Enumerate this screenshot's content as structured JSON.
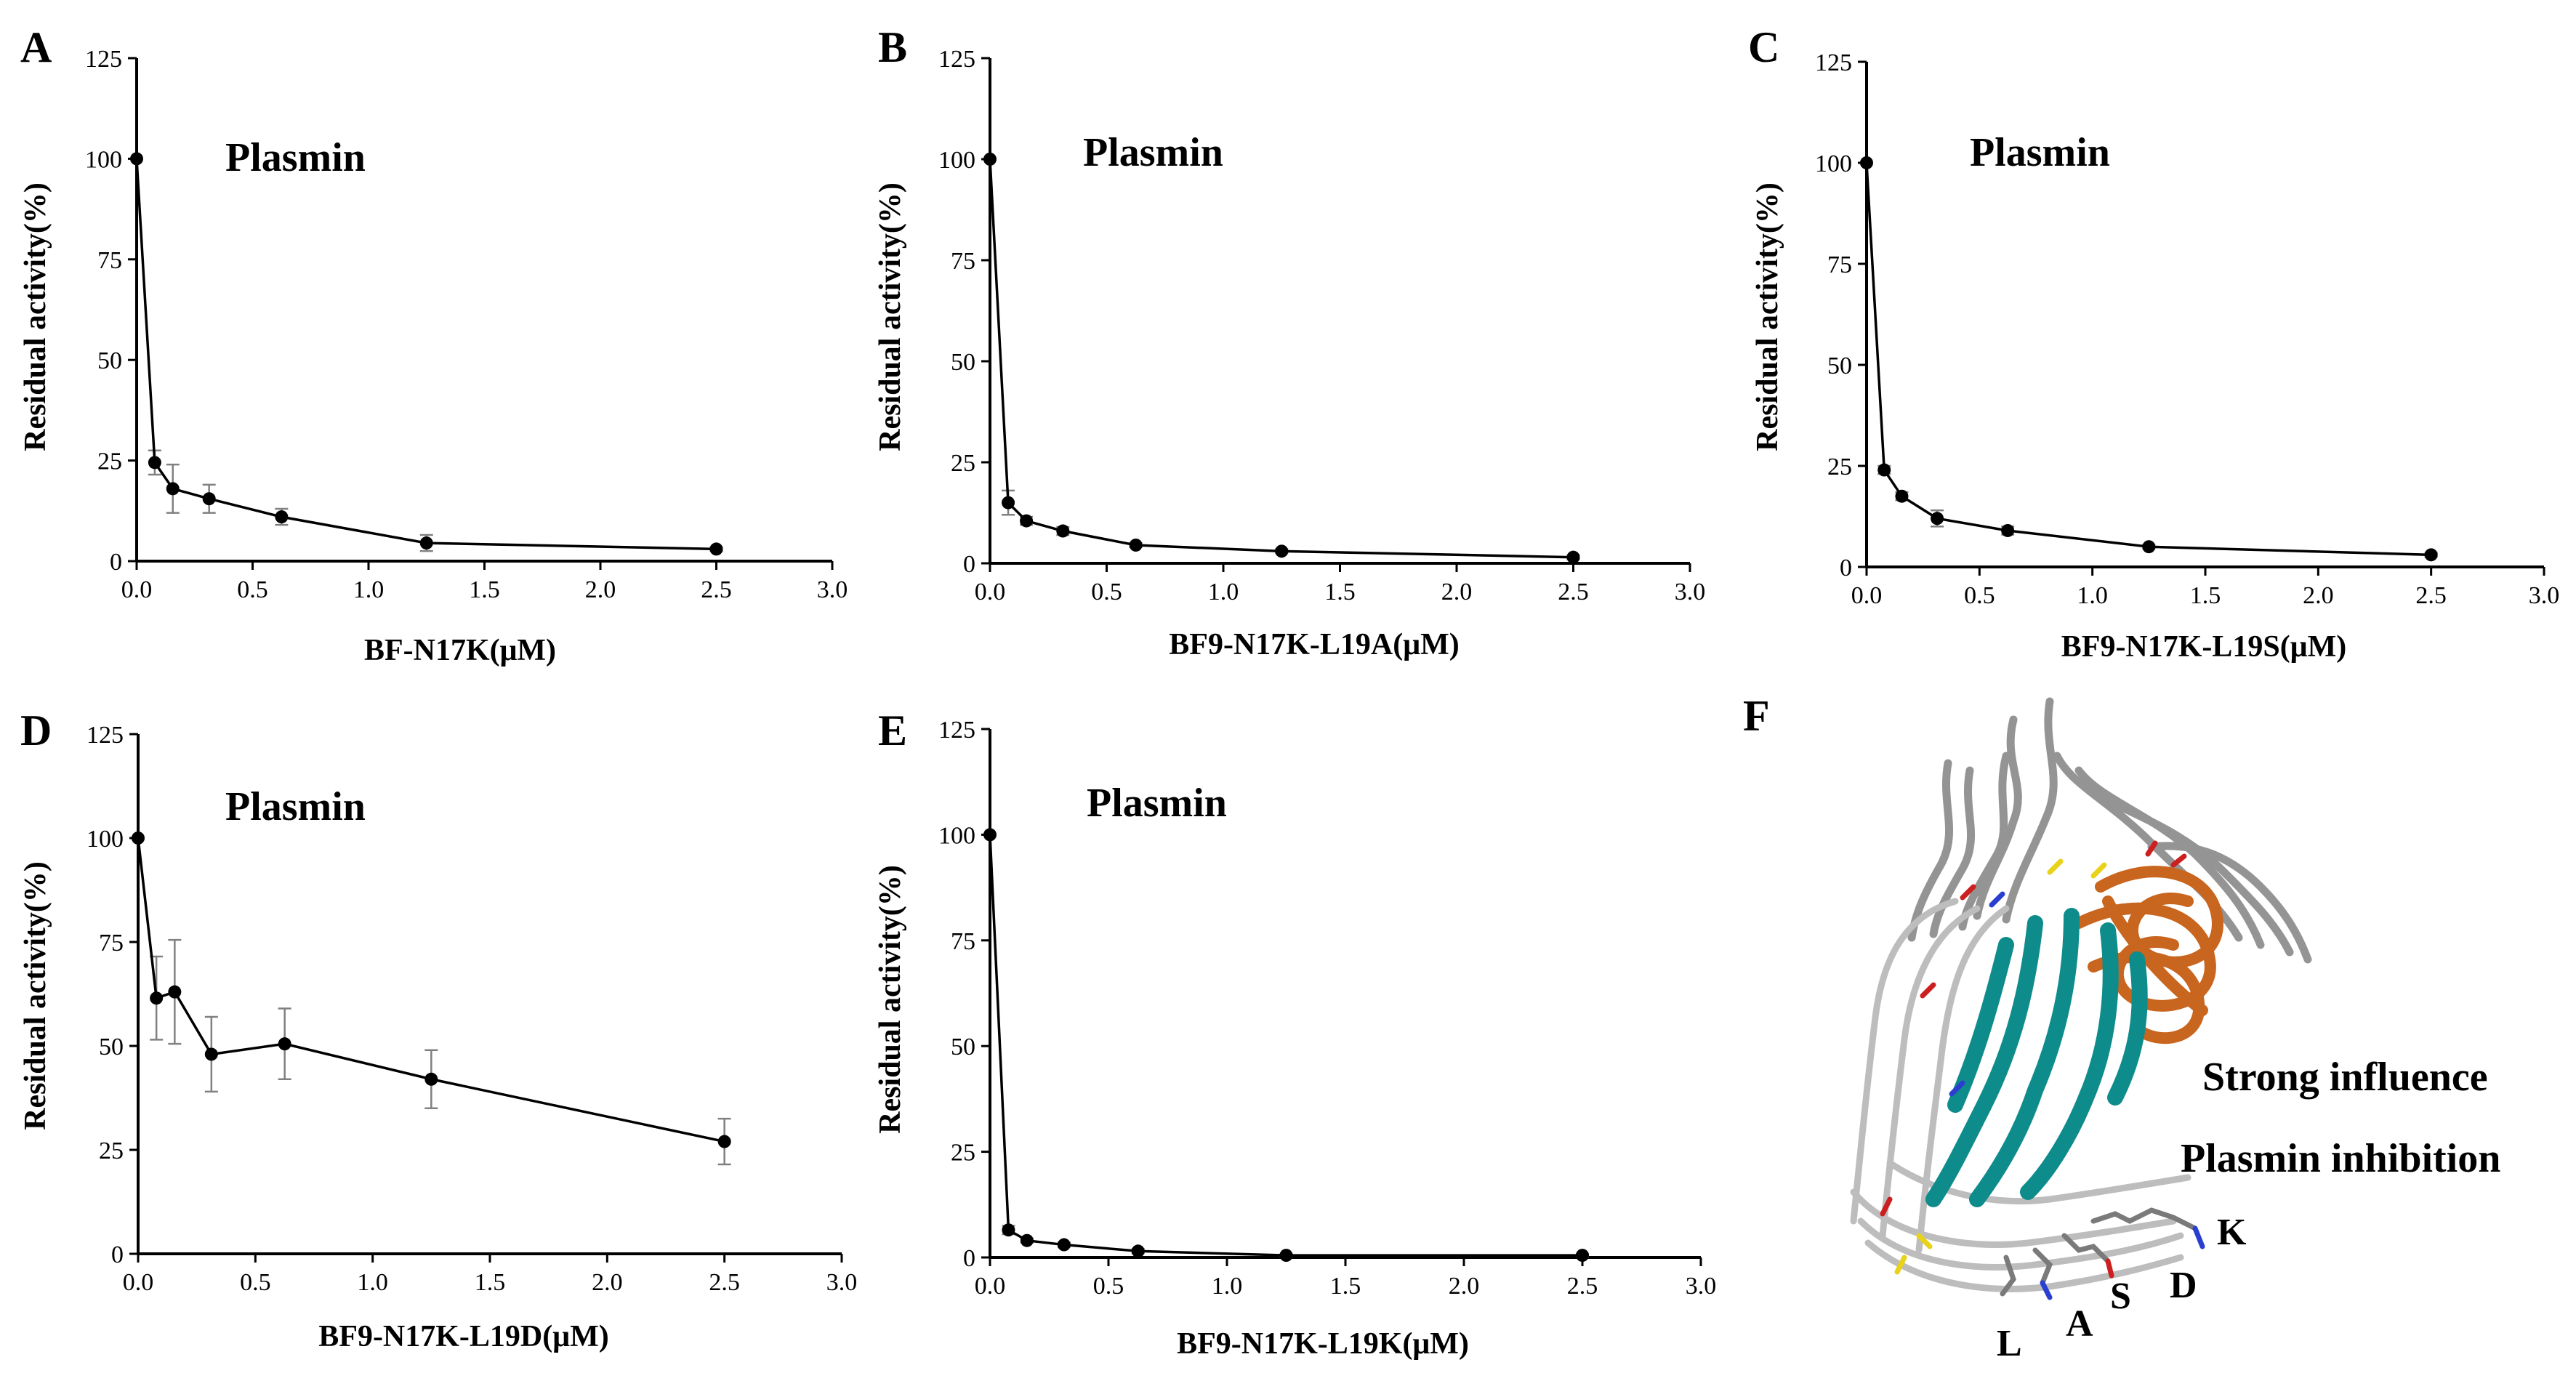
{
  "colors": {
    "line": "#000000",
    "errorbar": "#808080",
    "ribbon_gray": "#8c8c8c",
    "ribbon_light": "#c8c8c8",
    "ribbon_orange": "#c8651e",
    "ribbon_teal": "#0e8b8b",
    "sidechain_red": "#cc1f1f",
    "sidechain_blue": "#2a3fcf",
    "sidechain_yellow": "#e8d21a"
  },
  "chart_data": [
    {
      "panel": "A",
      "type": "line",
      "title": "Plasmin",
      "xlabel": "BF-N17K(μM)",
      "ylabel": "Residual activity(%)",
      "xlim": [
        0,
        3.0
      ],
      "ylim": [
        0,
        125
      ],
      "xticks": [
        "0.0",
        "0.5",
        "1.0",
        "1.5",
        "2.0",
        "2.5",
        "3.0"
      ],
      "yticks": [
        "0",
        "25",
        "50",
        "75",
        "100",
        "125"
      ],
      "x": [
        0,
        0.078,
        0.156,
        0.3125,
        0.625,
        1.25,
        2.5
      ],
      "y": [
        100,
        24.5,
        18,
        15.5,
        11,
        4.5,
        3
      ],
      "err": [
        0,
        3,
        6,
        3.5,
        2,
        2,
        0.5
      ]
    },
    {
      "panel": "B",
      "type": "line",
      "title": "Plasmin",
      "xlabel": "BF9-N17K-L19A(μM)",
      "ylabel": "Residual activity(%)",
      "xlim": [
        0,
        3.0
      ],
      "ylim": [
        0,
        125
      ],
      "xticks": [
        "0.0",
        "0.5",
        "1.0",
        "1.5",
        "2.0",
        "2.5",
        "3.0"
      ],
      "yticks": [
        "0",
        "25",
        "50",
        "75",
        "100",
        "125"
      ],
      "x": [
        0,
        0.078,
        0.156,
        0.3125,
        0.625,
        1.25,
        2.5
      ],
      "y": [
        100,
        15,
        10.5,
        8,
        4.5,
        3,
        1.5
      ],
      "err": [
        0,
        3,
        1,
        1,
        0.5,
        0.5,
        0.5
      ]
    },
    {
      "panel": "C",
      "type": "line",
      "title": "Plasmin",
      "xlabel": "BF9-N17K-L19S(μM)",
      "ylabel": "Residual activity(%)",
      "xlim": [
        0,
        3.0
      ],
      "ylim": [
        0,
        125
      ],
      "xticks": [
        "0.0",
        "0.5",
        "1.0",
        "1.5",
        "2.0",
        "2.5",
        "3.0"
      ],
      "yticks": [
        "0",
        "25",
        "50",
        "75",
        "100",
        "125"
      ],
      "x": [
        0,
        0.078,
        0.156,
        0.3125,
        0.625,
        1.25,
        2.5
      ],
      "y": [
        100,
        24,
        17.5,
        12,
        9,
        5,
        3
      ],
      "err": [
        0,
        1,
        1,
        2,
        1,
        0.5,
        0.5
      ]
    },
    {
      "panel": "D",
      "type": "line",
      "title": "Plasmin",
      "xlabel": "BF9-N17K-L19D(μM)",
      "ylabel": "Residual activity(%)",
      "xlim": [
        0,
        3.0
      ],
      "ylim": [
        0,
        125
      ],
      "xticks": [
        "0.0",
        "0.5",
        "1.0",
        "1.5",
        "2.0",
        "2.5",
        "3.0"
      ],
      "yticks": [
        "0",
        "25",
        "50",
        "75",
        "100",
        "125"
      ],
      "x": [
        0,
        0.078,
        0.156,
        0.3125,
        0.625,
        1.25,
        2.5
      ],
      "y": [
        100,
        61.5,
        63,
        48,
        50.5,
        42,
        27
      ],
      "err": [
        0,
        10,
        12.5,
        9,
        8.5,
        7,
        5.5
      ]
    },
    {
      "panel": "E",
      "type": "line",
      "title": "Plasmin",
      "xlabel": "BF9-N17K-L19K(μM)",
      "ylabel": "Residual activity(%)",
      "xlim": [
        0,
        3.0
      ],
      "ylim": [
        0,
        125
      ],
      "xticks": [
        "0.0",
        "0.5",
        "1.0",
        "1.5",
        "2.0",
        "2.5",
        "3.0"
      ],
      "yticks": [
        "0",
        "25",
        "50",
        "75",
        "100",
        "125"
      ],
      "x": [
        0,
        0.078,
        0.156,
        0.3125,
        0.625,
        1.25,
        2.5
      ],
      "y": [
        100,
        6.5,
        4,
        3,
        1.5,
        0.5,
        0.5
      ],
      "err": [
        0,
        1,
        0.5,
        0.5,
        0.5,
        0.3,
        0.3
      ]
    }
  ],
  "panel_f": {
    "letter": "F",
    "annotations": [
      "Strong influence",
      "Plasmin inhibition"
    ],
    "residue_labels": [
      "K",
      "D",
      "S",
      "A",
      "L"
    ]
  }
}
